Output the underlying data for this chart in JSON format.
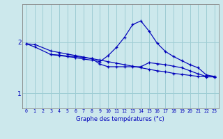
{
  "title": "Graphe des températures (°c)",
  "background_color": "#cce8ec",
  "grid_color": "#9ecdd4",
  "line_color": "#0000bb",
  "xlim": [
    -0.5,
    23.5
  ],
  "ylim": [
    0.7,
    2.75
  ],
  "yticks": [
    1,
    2
  ],
  "xticks": [
    0,
    1,
    2,
    3,
    4,
    5,
    6,
    7,
    8,
    9,
    10,
    11,
    12,
    13,
    14,
    15,
    16,
    17,
    18,
    19,
    20,
    21,
    22,
    23
  ],
  "line1_x": [
    0,
    1,
    3,
    4,
    5,
    6,
    7,
    8,
    9,
    10,
    11,
    12,
    13,
    14,
    15,
    16,
    17,
    18,
    19,
    20,
    21,
    22,
    23
  ],
  "line1_y": [
    1.97,
    1.96,
    1.83,
    1.8,
    1.77,
    1.74,
    1.71,
    1.68,
    1.65,
    1.62,
    1.59,
    1.56,
    1.53,
    1.5,
    1.47,
    1.44,
    1.42,
    1.39,
    1.37,
    1.35,
    1.33,
    1.32,
    1.32
  ],
  "line2_x": [
    0,
    1,
    3,
    4,
    5,
    6,
    7,
    8,
    9,
    10,
    11,
    12,
    13,
    14,
    15,
    16,
    17,
    18,
    19,
    20,
    21,
    22,
    23
  ],
  "line2_y": [
    1.97,
    1.91,
    1.76,
    1.74,
    1.72,
    1.7,
    1.67,
    1.65,
    1.62,
    1.74,
    1.9,
    2.1,
    2.35,
    2.42,
    2.22,
    1.98,
    1.82,
    1.72,
    1.64,
    1.56,
    1.5,
    1.36,
    1.33
  ],
  "line3_x": [
    3,
    4,
    5,
    6,
    7,
    8,
    9,
    10,
    11,
    12,
    13,
    14,
    15,
    16,
    17,
    18,
    19,
    20,
    21,
    22,
    23
  ],
  "line3_y": [
    1.76,
    1.75,
    1.73,
    1.72,
    1.7,
    1.68,
    1.57,
    1.52,
    1.52,
    1.52,
    1.52,
    1.52,
    1.6,
    1.58,
    1.56,
    1.53,
    1.5,
    1.44,
    1.38,
    1.33,
    1.32
  ],
  "xlabel_fontsize": 6.0,
  "ytick_fontsize": 6.5,
  "xtick_fontsize": 4.8,
  "marker_size": 2.5,
  "line_width": 0.85
}
